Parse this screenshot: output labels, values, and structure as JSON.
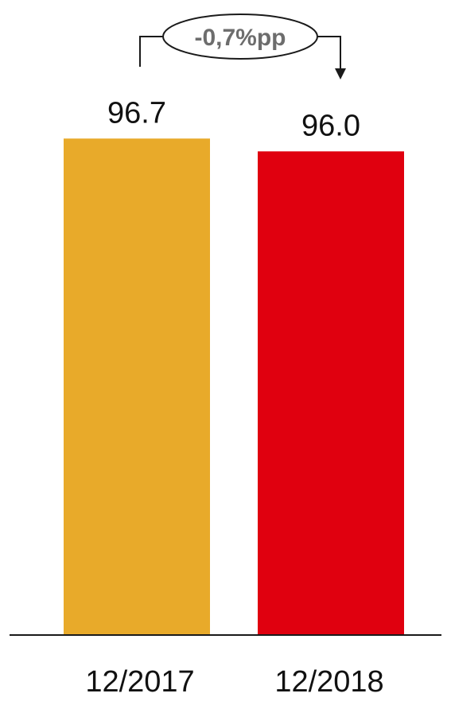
{
  "chart_data": {
    "type": "bar",
    "categories": [
      "12/2017",
      "12/2018"
    ],
    "values": [
      96.7,
      96.0
    ],
    "value_labels": [
      "96.7",
      "96.0"
    ],
    "colors": [
      "#e8aa2a",
      "#e0000f"
    ],
    "annotation": "-0,7%pp",
    "title": "",
    "xlabel": "",
    "ylabel": "",
    "grid": false,
    "legend": "none"
  }
}
